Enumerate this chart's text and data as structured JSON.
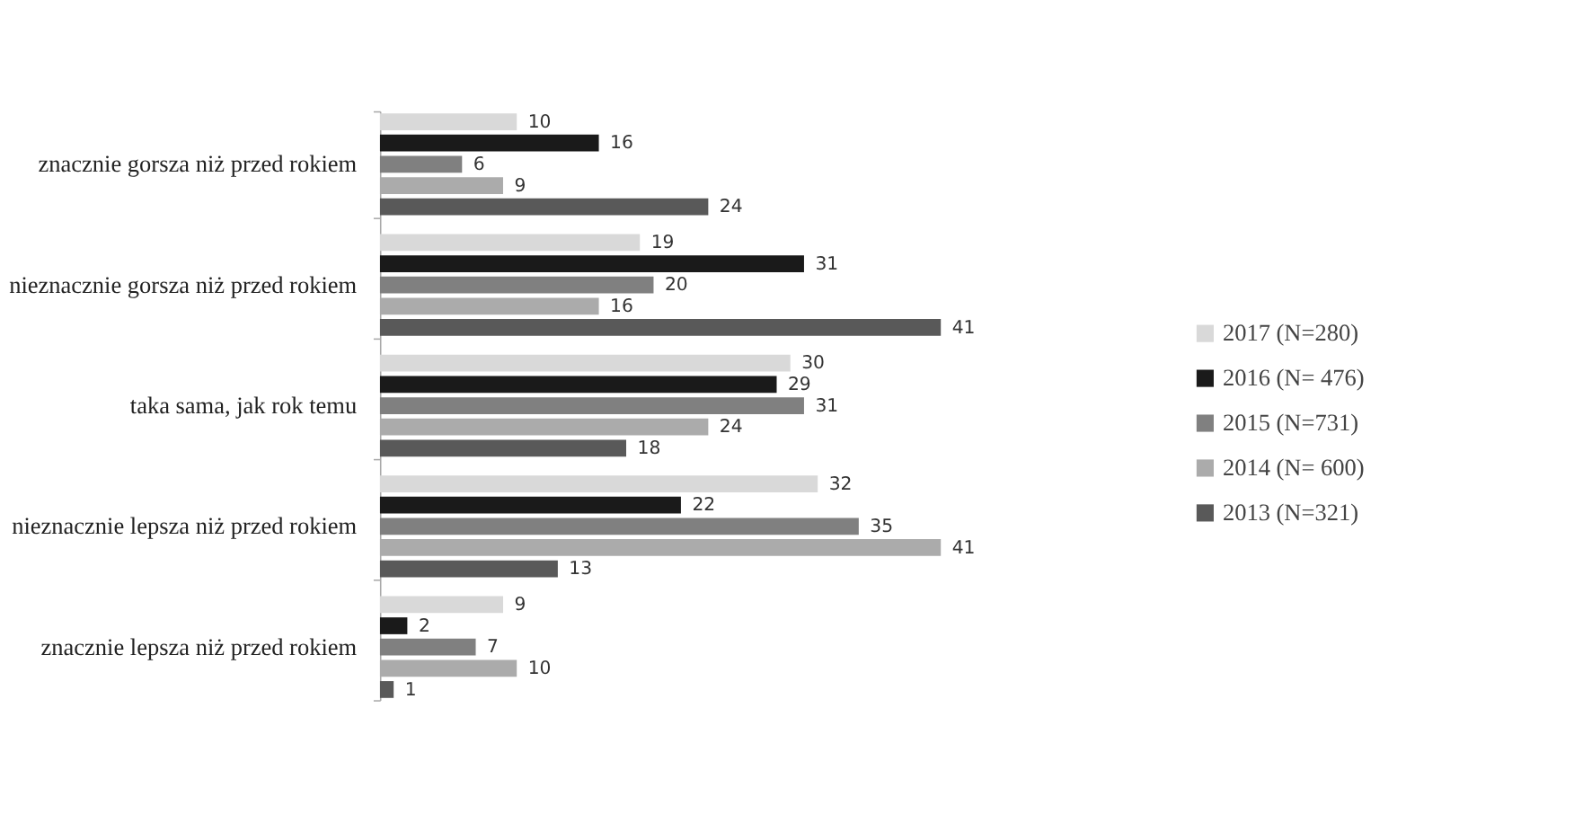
{
  "chart_data": {
    "type": "bar",
    "orientation": "horizontal",
    "data_labels": true,
    "legend": "bottom right",
    "grid": false,
    "categories": [
      "znacznie gorsza niż przed rokiem",
      "nieznacznie gorsza niż przed rokiem",
      "taka sama, jak rok temu",
      "nieznacznie lepsza niż przed rokiem",
      "znacznie lepsza niż przed rokiem"
    ],
    "series": [
      {
        "name": "2017 (N=280)",
        "color": "#d9d9d9",
        "values": [
          10,
          19,
          30,
          32,
          9
        ]
      },
      {
        "name": "2016 (N= 476)",
        "color": "#1a1a1a",
        "values": [
          16,
          31,
          29,
          22,
          2
        ]
      },
      {
        "name": "2015 (N=731)",
        "color": "#808080",
        "values": [
          6,
          20,
          31,
          35,
          7
        ]
      },
      {
        "name": "2014 (N= 600)",
        "color": "#ababab",
        "values": [
          9,
          16,
          24,
          41,
          10
        ]
      },
      {
        "name": "2013 (N=321)",
        "color": "#595959",
        "values": [
          24,
          41,
          18,
          13,
          1
        ]
      }
    ]
  }
}
